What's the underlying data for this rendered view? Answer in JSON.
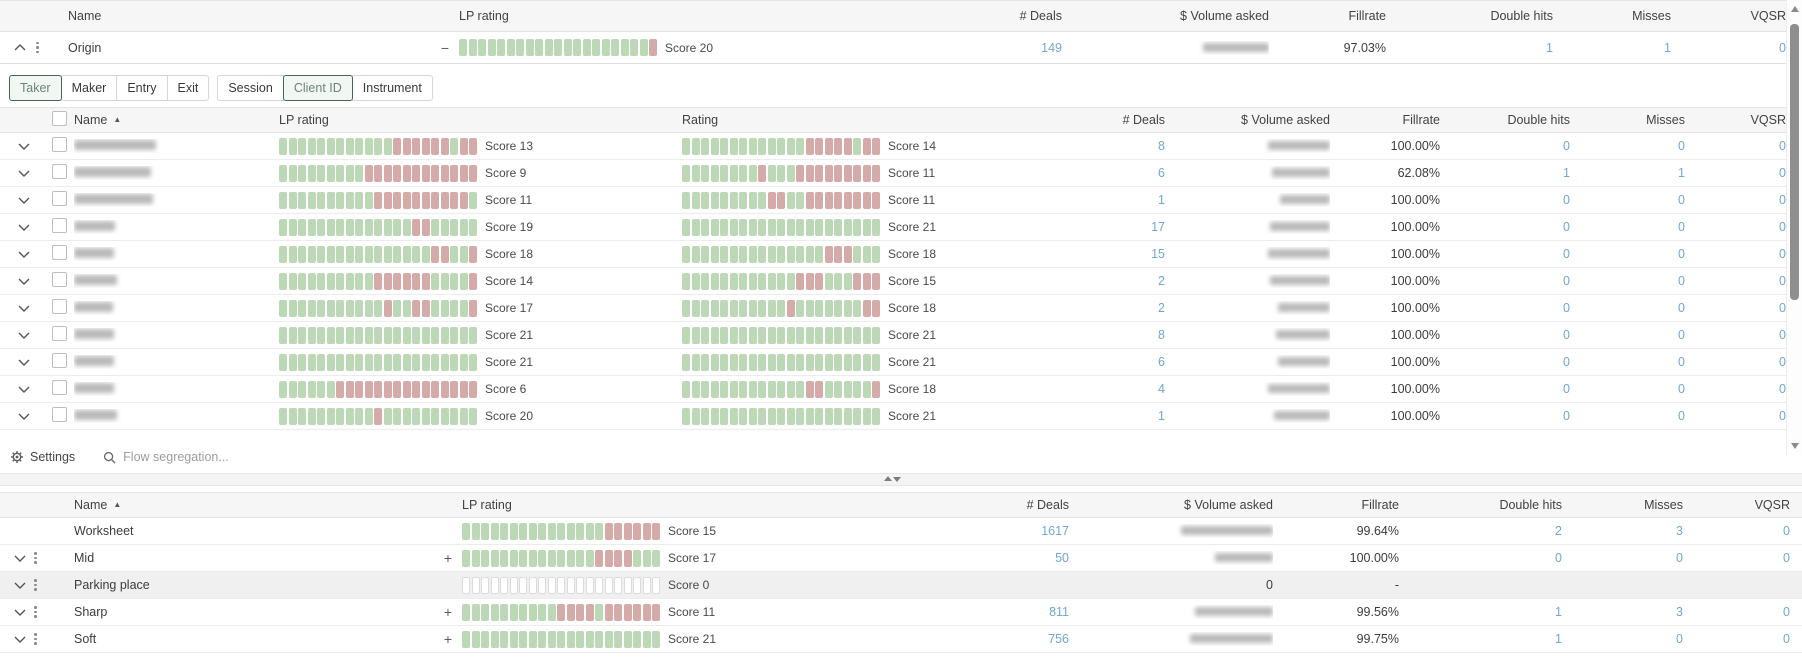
{
  "colors": {
    "accent_blue": "#73a7cb",
    "bar_green": "#bcd8b6",
    "bar_red": "#d5abaa",
    "tab_selected_border": "#4a6359"
  },
  "top_table": {
    "columns": {
      "name": "Name",
      "lp": "LP rating",
      "deals": "# Deals",
      "volume": "$ Volume asked",
      "fillrate": "Fillrate",
      "double_hits": "Double hits",
      "misses": "Misses",
      "vqsr": "VQSR"
    },
    "row": {
      "name": "Origin",
      "sign": "−",
      "lp_pattern": "ggggggggggggggggggggr",
      "lp_label": "Score 20",
      "deals": "149",
      "volume_mask_w": 66,
      "fillrate": "97.03%",
      "double_hits": "1",
      "misses": "1",
      "vqsr": "0"
    }
  },
  "tabs": {
    "group1": [
      {
        "label": "Taker",
        "selected": true
      },
      {
        "label": "Maker",
        "selected": false
      },
      {
        "label": "Entry",
        "selected": false
      },
      {
        "label": "Exit",
        "selected": false
      }
    ],
    "group2": [
      {
        "label": "Session",
        "selected": false
      },
      {
        "label": "Client ID",
        "selected": true
      },
      {
        "label": "Instrument",
        "selected": false
      }
    ]
  },
  "main_table": {
    "columns": {
      "name": "Name",
      "lp": "LP rating",
      "rating": "Rating",
      "deals": "# Deals",
      "volume": "$ Volume asked",
      "fillrate": "Fillrate",
      "double_hits": "Double hits",
      "misses": "Misses",
      "vqsr": "VQSR"
    },
    "rows": [
      {
        "name_mask_w": 82,
        "lp_pattern": "ggggggggggggrrrrrrgrr",
        "lp_label": "Score 13",
        "rt_pattern": "gggggggggggggrrrrrgrr",
        "rt_label": "Score 14",
        "deals": "8",
        "volume_mask_w": 62,
        "fillrate": "100.00%",
        "double_hits": "0",
        "misses": "0",
        "vqsr": "0"
      },
      {
        "name_mask_w": 77,
        "lp_pattern": "gggggggggrrrrrrrrrrrr",
        "lp_label": "Score 9",
        "rt_pattern": "ggggggggrgggrrrrrrrrr",
        "rt_label": "Score 11",
        "deals": "6",
        "volume_mask_w": 58,
        "fillrate": "62.08%",
        "double_hits": "1",
        "misses": "1",
        "vqsr": "0"
      },
      {
        "name_mask_w": 79,
        "lp_pattern": "ggggggggggrrrrrrrrrrg",
        "lp_label": "Score 11",
        "rt_pattern": "gggggggggrrggrrrrrrrr",
        "rt_label": "Score 11",
        "deals": "1",
        "volume_mask_w": 50,
        "fillrate": "100.00%",
        "double_hits": "0",
        "misses": "0",
        "vqsr": "0"
      },
      {
        "name_mask_w": 41,
        "lp_pattern": "ggggggggggggggrrggggg",
        "lp_label": "Score 19",
        "rt_pattern": "ggggggggggggggggggggg",
        "rt_label": "Score 21",
        "deals": "17",
        "volume_mask_w": 60,
        "fillrate": "100.00%",
        "double_hits": "0",
        "misses": "0",
        "vqsr": "0"
      },
      {
        "name_mask_w": 40,
        "lp_pattern": "ggggggggggggggggrrggr",
        "lp_label": "Score 18",
        "rt_pattern": "gggggggggggggggrrrggg",
        "rt_label": "Score 18",
        "deals": "15",
        "volume_mask_w": 62,
        "fillrate": "100.00%",
        "double_hits": "0",
        "misses": "0",
        "vqsr": "0"
      },
      {
        "name_mask_w": 43,
        "lp_pattern": "ggggggggggrrrrrrggggr",
        "lp_label": "Score 14",
        "rt_pattern": "ggggggggggggrrrgggrrr",
        "rt_label": "Score 15",
        "deals": "2",
        "volume_mask_w": 60,
        "fillrate": "100.00%",
        "double_hits": "0",
        "misses": "0",
        "vqsr": "0"
      },
      {
        "name_mask_w": 39,
        "lp_pattern": "gggggggggggrggrrggggr",
        "lp_label": "Score 17",
        "rt_pattern": "gggggggggggrgggggggrr",
        "rt_label": "Score 18",
        "deals": "2",
        "volume_mask_w": 52,
        "fillrate": "100.00%",
        "double_hits": "0",
        "misses": "0",
        "vqsr": "0"
      },
      {
        "name_mask_w": 40,
        "lp_pattern": "ggggggggggggggggggggg",
        "lp_label": "Score 21",
        "rt_pattern": "ggggggggggggggggggggg",
        "rt_label": "Score 21",
        "deals": "8",
        "volume_mask_w": 54,
        "fillrate": "100.00%",
        "double_hits": "0",
        "misses": "0",
        "vqsr": "0"
      },
      {
        "name_mask_w": 40,
        "lp_pattern": "ggggggggggggggggggggg",
        "lp_label": "Score 21",
        "rt_pattern": "ggggggggggggggggggggg",
        "rt_label": "Score 21",
        "deals": "6",
        "volume_mask_w": 52,
        "fillrate": "100.00%",
        "double_hits": "0",
        "misses": "0",
        "vqsr": "0"
      },
      {
        "name_mask_w": 40,
        "lp_pattern": "ggggggrrrrrrrrrrrrrrr",
        "lp_label": "Score 6",
        "rt_pattern": "gggggggggggggrrgggggr",
        "rt_label": "Score 18",
        "deals": "4",
        "volume_mask_w": 62,
        "fillrate": "100.00%",
        "double_hits": "0",
        "misses": "0",
        "vqsr": "0"
      },
      {
        "name_mask_w": 43,
        "lp_pattern": "ggggggggggrgggggggggg",
        "lp_label": "Score 20",
        "rt_pattern": "ggggggggggggggggggggg",
        "rt_label": "Score 21",
        "deals": "1",
        "volume_mask_w": 56,
        "fillrate": "100.00%",
        "double_hits": "0",
        "misses": "0",
        "vqsr": "0"
      }
    ]
  },
  "toolbar": {
    "settings_label": "Settings",
    "search_placeholder": "Flow segregation..."
  },
  "bottom_table": {
    "columns": {
      "name": "Name",
      "lp": "LP rating",
      "deals": "# Deals",
      "volume": "$ Volume asked",
      "fillrate": "Fillrate",
      "double_hits": "Double hits",
      "misses": "Misses",
      "vqsr": "VQSR"
    },
    "rows": [
      {
        "name": "Worksheet",
        "expandable": false,
        "sign": "",
        "lp_pattern": "gggggggggggggggrrrrrr",
        "lp_label": "Score 15",
        "deals": "1617",
        "volume_mask_w": 92,
        "volume_text": "",
        "fillrate": "99.64%",
        "double_hits": "2",
        "misses": "3",
        "vqsr": "0",
        "selected": false
      },
      {
        "name": "Mid",
        "expandable": true,
        "sign": "+",
        "lp_pattern": "ggggggggggggggrrrrggg",
        "lp_label": "Score 17",
        "deals": "50",
        "volume_mask_w": 58,
        "volume_text": "",
        "fillrate": "100.00%",
        "double_hits": "0",
        "misses": "0",
        "vqsr": "0",
        "selected": false
      },
      {
        "name": "Parking place",
        "expandable": true,
        "sign": "",
        "lp_pattern": "eeeeeeeeeeeeeeeeeeeee",
        "lp_label": "Score 0",
        "deals": "",
        "volume_mask_w": 0,
        "volume_text": "0",
        "fillrate": "-",
        "double_hits": "",
        "misses": "",
        "vqsr": "",
        "selected": true
      },
      {
        "name": "Sharp",
        "expandable": true,
        "sign": "+",
        "lp_pattern": "ggggggggggrrrrgrrrrrr",
        "lp_label": "Score 11",
        "deals": "811",
        "volume_mask_w": 78,
        "volume_text": "",
        "fillrate": "99.56%",
        "double_hits": "1",
        "misses": "3",
        "vqsr": "0",
        "selected": false
      },
      {
        "name": "Soft",
        "expandable": true,
        "sign": "+",
        "lp_pattern": "ggggggggggggggggggggg",
        "lp_label": "Score 21",
        "deals": "756",
        "volume_mask_w": 83,
        "volume_text": "",
        "fillrate": "99.75%",
        "double_hits": "1",
        "misses": "0",
        "vqsr": "0",
        "selected": false
      }
    ]
  }
}
